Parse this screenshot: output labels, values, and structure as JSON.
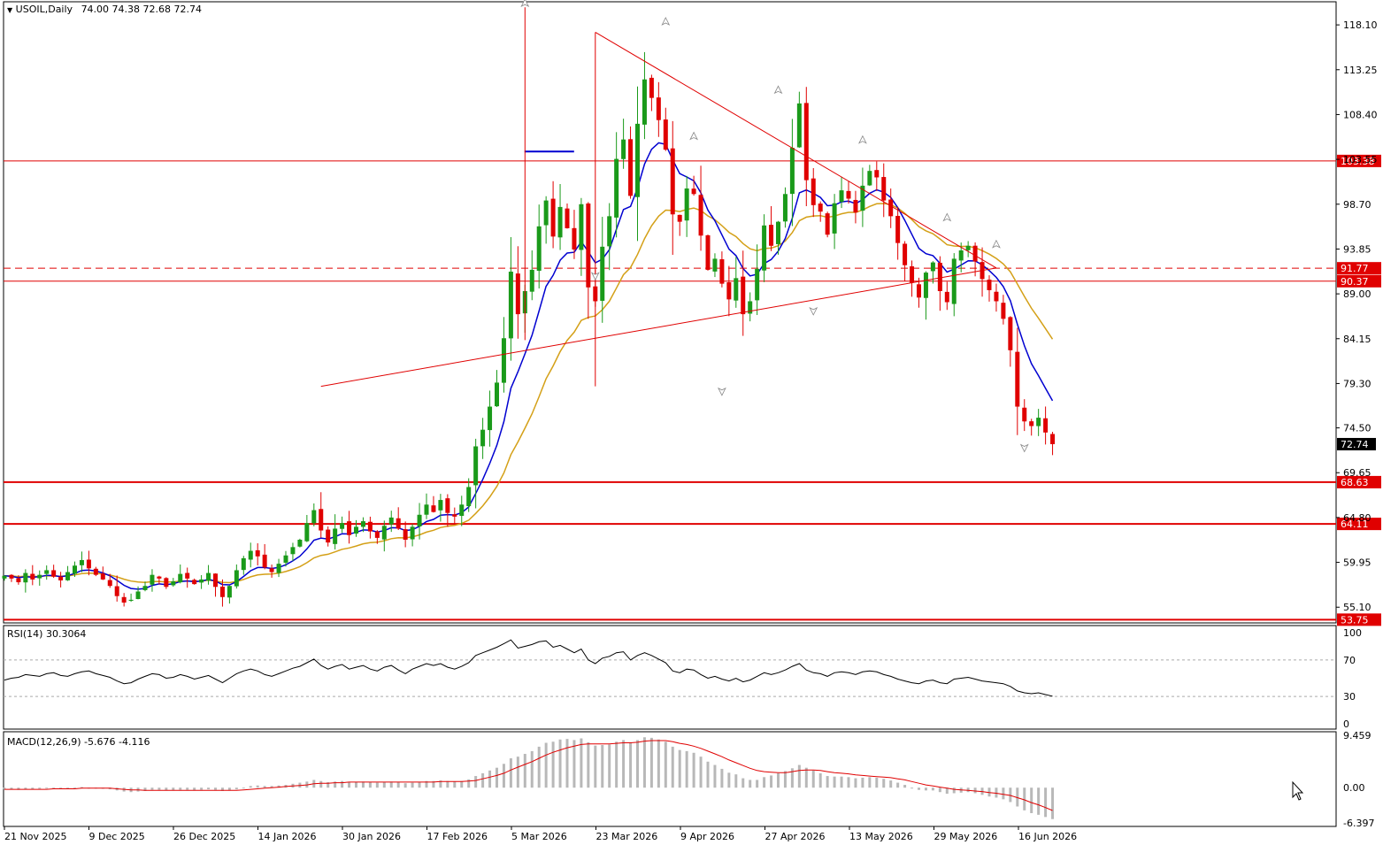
{
  "chart_data": [
    {
      "type": "candlestick",
      "title": "USOIL,Daily",
      "ohlc_label": "74.00 74.38 72.68 72.74",
      "symbol": "USOIL",
      "timeframe": "Daily",
      "last_price": "72.74",
      "y_ticks": [
        "118.10",
        "113.25",
        "108.40",
        "103.55",
        "98.70",
        "93.85",
        "89.00",
        "84.15",
        "79.30",
        "74.50",
        "69.65",
        "64.80",
        "59.95",
        "55.10"
      ],
      "ylim": [
        53.4,
        120.6
      ],
      "x_ticks": [
        "21 Nov 2025",
        "9 Dec 2025",
        "26 Dec 2025",
        "14 Jan 2026",
        "30 Jan 2026",
        "17 Feb 2026",
        "5 Mar 2026",
        "23 Mar 2026",
        "9 Apr 2026",
        "27 Apr 2026",
        "13 May 2026",
        "29 May 2026",
        "16 Jun 2026"
      ],
      "horizontal_levels": [
        {
          "label": "103.38",
          "value": 103.38,
          "style": "solid"
        },
        {
          "label": "91.77",
          "value": 91.77,
          "style": "dashed"
        },
        {
          "label": "90.37",
          "value": 90.37,
          "style": "solid"
        },
        {
          "label": "68.63",
          "value": 68.63,
          "style": "thick"
        },
        {
          "label": "64.11",
          "value": 64.11,
          "style": "thick"
        },
        {
          "label": "53.75",
          "value": 53.75,
          "style": "thick"
        }
      ],
      "trendlines": [
        {
          "from": [
            84,
            117.3
          ],
          "to": [
            141,
            91.8
          ]
        },
        {
          "from": [
            45,
            79.0
          ],
          "to": [
            141,
            91.8
          ]
        },
        {
          "from": [
            84,
            117.3
          ],
          "to": [
            84,
            79.0
          ]
        }
      ],
      "indicators": [
        "blue fast MA",
        "gold slow MA"
      ],
      "candles_close": [
        58.5,
        58.2,
        57.8,
        58.8,
        58.1,
        58.6,
        59.1,
        58.4,
        58.0,
        58.9,
        59.6,
        60.2,
        59.3,
        58.6,
        58.1,
        57.4,
        56.3,
        55.6,
        55.9,
        56.8,
        57.4,
        58.6,
        58.2,
        57.3,
        57.9,
        58.7,
        58.2,
        57.6,
        58.1,
        58.8,
        57.3,
        56.2,
        57.4,
        59.1,
        60.4,
        61.2,
        60.6,
        59.4,
        58.9,
        59.8,
        60.7,
        61.6,
        62.4,
        64.2,
        65.6,
        63.4,
        62.1,
        63.6,
        64.2,
        62.9,
        63.8,
        64.4,
        63.3,
        62.6,
        63.9,
        64.8,
        63.6,
        62.4,
        63.8,
        65.1,
        66.2,
        65.4,
        66.7,
        65.3,
        64.9,
        66.2,
        68.1,
        72.5,
        74.3,
        76.8,
        79.4,
        84.2,
        91.4,
        86.8,
        89.3,
        91.6,
        96.3,
        99.1,
        95.2,
        98.4,
        96.1,
        93.8,
        98.7,
        89.7,
        88.2,
        94.1,
        97.4,
        103.6,
        105.7,
        99.6,
        107.4,
        112.2,
        110.2,
        107.8,
        104.6,
        97.6,
        96.8,
        100.4,
        99.8,
        95.3,
        91.6,
        92.8,
        90.1,
        88.4,
        90.7,
        86.8,
        88.2,
        91.7,
        96.4,
        94.2,
        96.8,
        99.8,
        104.8,
        109.6,
        101.3,
        98.6,
        97.9,
        95.4,
        98.8,
        100.2,
        99.3,
        97.8,
        100.7,
        102.3,
        101.6,
        99.1,
        97.4,
        94.5,
        92.1,
        90.2,
        88.6,
        91.3,
        92.4,
        89.3,
        88.1,
        92.8,
        93.7,
        94.2,
        92.5,
        90.6,
        89.4,
        88.2,
        86.3,
        82.9,
        76.8,
        75.2,
        74.7,
        75.6,
        74.0,
        72.74
      ],
      "rsi": {
        "label": "RSI(14) 30.3064",
        "ylim": [
          0,
          100
        ],
        "levels": [
          70,
          30
        ],
        "ticks": [
          "100",
          "70",
          "30",
          "0"
        ],
        "values": [
          48,
          50,
          51,
          54,
          53,
          52,
          55,
          56,
          53,
          52,
          55,
          57,
          58,
          55,
          53,
          51,
          47,
          44,
          45,
          49,
          52,
          55,
          54,
          50,
          51,
          54,
          52,
          49,
          51,
          53,
          49,
          45,
          50,
          55,
          58,
          60,
          58,
          54,
          52,
          55,
          58,
          61,
          63,
          67,
          71,
          64,
          60,
          63,
          65,
          60,
          62,
          64,
          60,
          58,
          62,
          64,
          59,
          55,
          60,
          63,
          66,
          64,
          66,
          62,
          60,
          63,
          67,
          75,
          78,
          81,
          84,
          88,
          92,
          83,
          85,
          87,
          90,
          91,
          84,
          86,
          82,
          78,
          82,
          70,
          66,
          72,
          74,
          78,
          79,
          70,
          75,
          78,
          75,
          71,
          67,
          58,
          56,
          60,
          59,
          54,
          50,
          52,
          49,
          47,
          50,
          46,
          48,
          52,
          56,
          54,
          56,
          59,
          63,
          66,
          59,
          56,
          55,
          52,
          56,
          57,
          56,
          54,
          57,
          58,
          57,
          54,
          52,
          49,
          47,
          45,
          44,
          47,
          48,
          45,
          44,
          49,
          50,
          51,
          49,
          47,
          46,
          45,
          44,
          41,
          36,
          34,
          33,
          34,
          32,
          30.3
        ]
      },
      "macd": {
        "label": "MACD(12,26,9) -5.676 -4.116",
        "ylim": [
          -7.0,
          10.1
        ],
        "ticks": [
          "9.459",
          "0.00",
          "-6.397"
        ],
        "histogram": [
          -0.2,
          -0.3,
          -0.4,
          -0.3,
          -0.3,
          -0.2,
          -0.1,
          -0.1,
          -0.2,
          -0.1,
          0.0,
          0.1,
          0.0,
          -0.1,
          -0.2,
          -0.3,
          -0.5,
          -0.7,
          -0.8,
          -0.7,
          -0.6,
          -0.4,
          -0.4,
          -0.5,
          -0.5,
          -0.4,
          -0.4,
          -0.5,
          -0.4,
          -0.3,
          -0.4,
          -0.6,
          -0.5,
          -0.3,
          0.0,
          0.3,
          0.4,
          0.3,
          0.3,
          0.4,
          0.5,
          0.7,
          0.9,
          1.1,
          1.4,
          1.2,
          1.0,
          1.1,
          1.2,
          1.0,
          1.0,
          1.1,
          1.0,
          0.9,
          1.0,
          1.1,
          1.0,
          0.8,
          0.9,
          1.0,
          1.2,
          1.2,
          1.3,
          1.2,
          1.1,
          1.2,
          1.5,
          2.1,
          2.6,
          3.1,
          3.6,
          4.3,
          5.3,
          5.6,
          6.1,
          6.6,
          7.4,
          8.1,
          8.3,
          8.7,
          8.8,
          8.6,
          8.9,
          8.2,
          7.6,
          7.7,
          7.8,
          8.3,
          8.6,
          8.2,
          8.6,
          9.1,
          9.0,
          8.7,
          8.3,
          7.4,
          6.8,
          6.6,
          6.3,
          5.6,
          4.7,
          4.1,
          3.4,
          2.7,
          2.4,
          1.7,
          1.4,
          1.4,
          1.9,
          2.2,
          2.6,
          3.0,
          3.5,
          4.1,
          3.6,
          3.1,
          2.6,
          2.1,
          2.0,
          2.0,
          1.9,
          1.7,
          1.8,
          1.9,
          1.8,
          1.6,
          1.3,
          0.9,
          0.5,
          0.0,
          -0.4,
          -0.5,
          -0.5,
          -0.8,
          -1.1,
          -1.0,
          -0.9,
          -0.8,
          -1.0,
          -1.3,
          -1.6,
          -1.8,
          -2.1,
          -2.6,
          -3.4,
          -4.1,
          -4.6,
          -4.9,
          -5.3,
          -5.676
        ],
        "signal": [
          -0.3,
          -0.3,
          -0.3,
          -0.3,
          -0.3,
          -0.3,
          -0.3,
          -0.2,
          -0.2,
          -0.2,
          -0.2,
          -0.1,
          -0.1,
          -0.1,
          -0.1,
          -0.1,
          -0.2,
          -0.3,
          -0.4,
          -0.4,
          -0.5,
          -0.5,
          -0.5,
          -0.5,
          -0.5,
          -0.5,
          -0.5,
          -0.5,
          -0.5,
          -0.5,
          -0.5,
          -0.5,
          -0.5,
          -0.5,
          -0.4,
          -0.3,
          -0.2,
          -0.1,
          0.0,
          0.1,
          0.2,
          0.3,
          0.4,
          0.5,
          0.7,
          0.8,
          0.8,
          0.9,
          0.9,
          1.0,
          1.0,
          1.0,
          1.0,
          1.0,
          1.0,
          1.0,
          1.0,
          1.0,
          1.0,
          1.0,
          1.0,
          1.0,
          1.1,
          1.1,
          1.1,
          1.1,
          1.2,
          1.3,
          1.6,
          1.9,
          2.2,
          2.6,
          3.2,
          3.7,
          4.2,
          4.7,
          5.3,
          5.9,
          6.4,
          6.8,
          7.2,
          7.5,
          7.8,
          7.9,
          7.9,
          7.9,
          7.9,
          8.0,
          8.1,
          8.1,
          8.2,
          8.4,
          8.5,
          8.5,
          8.5,
          8.3,
          8.0,
          7.8,
          7.5,
          7.1,
          6.6,
          6.1,
          5.6,
          5.0,
          4.5,
          4.0,
          3.5,
          3.1,
          2.9,
          2.8,
          2.7,
          2.7,
          2.9,
          3.1,
          3.2,
          3.2,
          3.1,
          2.9,
          2.7,
          2.6,
          2.5,
          2.3,
          2.2,
          2.1,
          2.0,
          1.9,
          1.8,
          1.6,
          1.4,
          1.1,
          0.8,
          0.5,
          0.3,
          0.1,
          -0.1,
          -0.3,
          -0.4,
          -0.5,
          -0.6,
          -0.7,
          -0.9,
          -1.0,
          -1.2,
          -1.4,
          -1.8,
          -2.2,
          -2.7,
          -3.1,
          -3.6,
          -4.116
        ]
      }
    }
  ]
}
